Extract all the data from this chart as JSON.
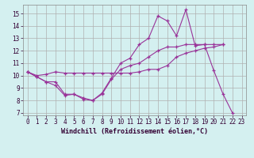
{
  "xlabel": "Windchill (Refroidissement éolien,°C)",
  "bg_color": "#d4f0f0",
  "grid_color": "#b0b0b0",
  "line_color": "#993399",
  "xlim": [
    -0.5,
    23.5
  ],
  "ylim": [
    6.8,
    15.7
  ],
  "xticks": [
    0,
    1,
    2,
    3,
    4,
    5,
    6,
    7,
    8,
    9,
    10,
    11,
    12,
    13,
    14,
    15,
    16,
    17,
    18,
    19,
    20,
    21,
    22,
    23
  ],
  "yticks": [
    7,
    8,
    9,
    10,
    11,
    12,
    13,
    14,
    15
  ],
  "line1_x": [
    0,
    1,
    2,
    3,
    4,
    5,
    6,
    7,
    8,
    9,
    10,
    11,
    12,
    13,
    14,
    15,
    16,
    17,
    18,
    19,
    20,
    21,
    22
  ],
  "line1_y": [
    10.3,
    9.9,
    9.5,
    9.2,
    8.4,
    8.5,
    8.1,
    8.0,
    8.6,
    9.8,
    11.0,
    11.4,
    12.5,
    13.0,
    14.8,
    14.4,
    13.2,
    15.3,
    12.4,
    12.5,
    10.4,
    8.5,
    7.0
  ],
  "line2_x": [
    0,
    1,
    2,
    3,
    4,
    5,
    6,
    7,
    8,
    9,
    10,
    11,
    12,
    13,
    14,
    15,
    16,
    17,
    18,
    19,
    20,
    21
  ],
  "line2_y": [
    10.3,
    9.9,
    9.5,
    9.5,
    8.5,
    8.5,
    8.2,
    8.0,
    8.5,
    9.7,
    10.5,
    10.8,
    11.0,
    11.5,
    12.0,
    12.3,
    12.3,
    12.5,
    12.5,
    12.5,
    12.5,
    12.5
  ],
  "line3_x": [
    0,
    1,
    2,
    3,
    4,
    5,
    6,
    7,
    8,
    9,
    10,
    11,
    12,
    13,
    14,
    15,
    16,
    17,
    18,
    19,
    20,
    21
  ],
  "line3_y": [
    10.3,
    10.0,
    10.1,
    10.3,
    10.2,
    10.2,
    10.2,
    10.2,
    10.2,
    10.2,
    10.2,
    10.2,
    10.3,
    10.5,
    10.5,
    10.8,
    11.5,
    11.8,
    12.0,
    12.2,
    12.3,
    12.5
  ],
  "marker": "+"
}
